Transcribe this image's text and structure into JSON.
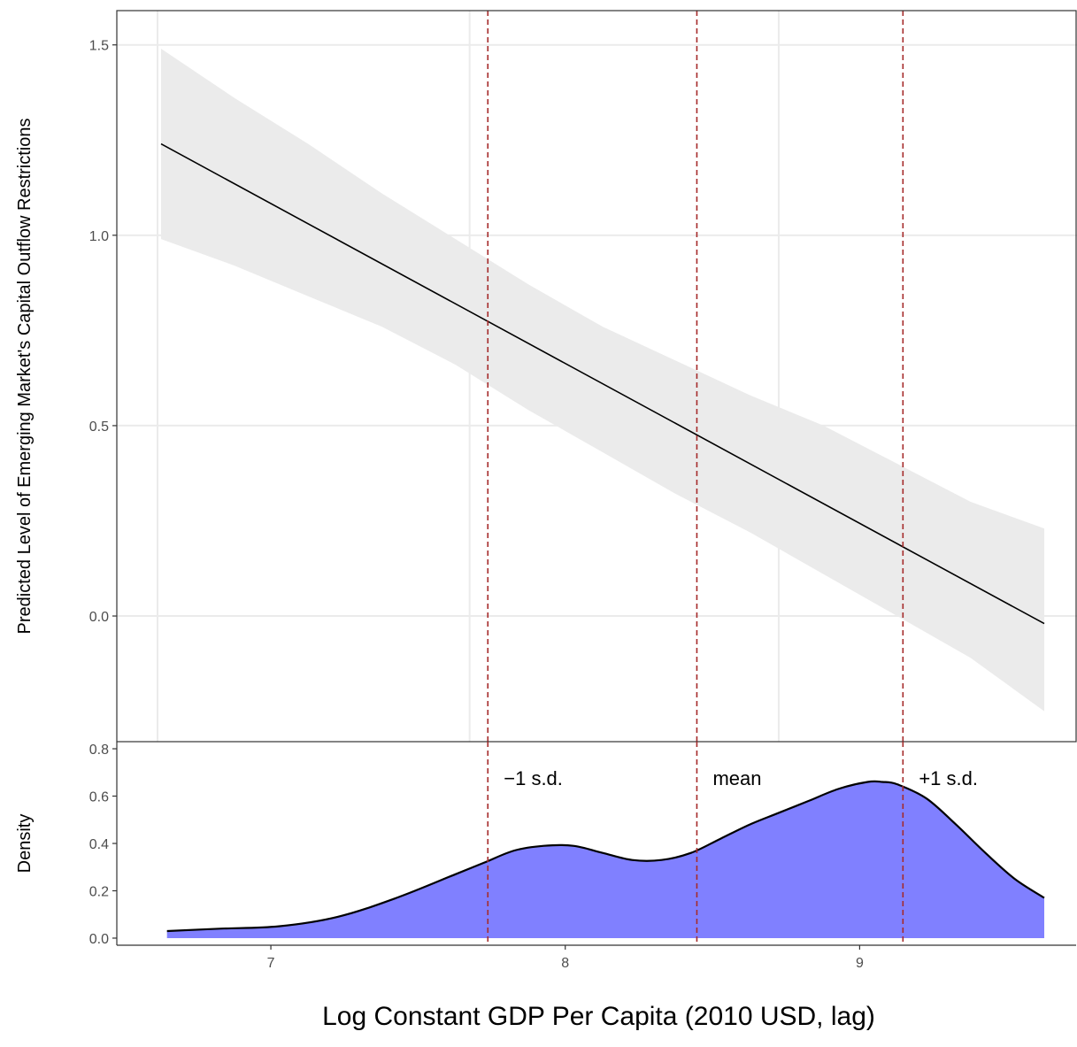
{
  "chart_data": [
    {
      "type": "line",
      "panel": "predicted",
      "ylabel": "Predicted Level of Emerging Market's Capital Outflow Restrictions",
      "xlim": [
        6.6,
        9.6
      ],
      "ylim": [
        -0.33,
        1.59
      ],
      "yticks": [
        0.0,
        0.5,
        1.0,
        1.5
      ],
      "ytick_labels": [
        "0.0",
        "0.5",
        "1.0",
        "1.5"
      ],
      "x_major_gridlines": [
        6.6,
        7.66,
        8.71
      ],
      "grid": true,
      "series": [
        {
          "kind": "line",
          "x": [
            6.6,
            9.6
          ],
          "y": [
            1.24,
            -0.02
          ]
        },
        {
          "kind": "ribbon",
          "x": [
            6.6,
            6.85,
            7.1,
            7.35,
            7.6,
            7.85,
            8.1,
            8.35,
            8.6,
            8.85,
            9.1,
            9.35,
            9.6
          ],
          "lower": [
            0.99,
            0.92,
            0.84,
            0.76,
            0.66,
            0.54,
            0.43,
            0.32,
            0.22,
            0.11,
            0.0,
            -0.11,
            -0.25
          ],
          "upper": [
            1.49,
            1.36,
            1.24,
            1.11,
            0.99,
            0.87,
            0.76,
            0.67,
            0.58,
            0.5,
            0.4,
            0.3,
            0.23
          ]
        }
      ],
      "reference_lines": [
        {
          "x": 7.71,
          "label": "−1 s.d."
        },
        {
          "x": 8.42,
          "label": "mean"
        },
        {
          "x": 9.12,
          "label": "+1 s.d."
        }
      ],
      "colors": {
        "line": "#000000",
        "ribbon": "#ebebeb",
        "reference": "#a52a2a",
        "grid": "#ebebeb"
      }
    },
    {
      "type": "area",
      "panel": "density",
      "ylabel": "Density",
      "xlabel": "Log Constant GDP Per Capita (2010 USD, lag)",
      "xlim": [
        6.6,
        9.6
      ],
      "ylim": [
        -0.03,
        0.83
      ],
      "xticks": [
        7,
        8,
        9
      ],
      "xtick_labels": [
        "7",
        "8",
        "9"
      ],
      "yticks": [
        0.0,
        0.2,
        0.4,
        0.6,
        0.8
      ],
      "ytick_labels": [
        "0.0",
        "0.2",
        "0.4",
        "0.6",
        "0.8"
      ],
      "series": [
        {
          "x": [
            6.62,
            6.8,
            7.0,
            7.2,
            7.4,
            7.6,
            7.7,
            7.8,
            7.9,
            8.0,
            8.1,
            8.2,
            8.3,
            8.4,
            8.5,
            8.6,
            8.7,
            8.8,
            8.9,
            9.0,
            9.05,
            9.1,
            9.2,
            9.3,
            9.4,
            9.5,
            9.6
          ],
          "y": [
            0.03,
            0.04,
            0.05,
            0.09,
            0.17,
            0.27,
            0.32,
            0.37,
            0.39,
            0.39,
            0.36,
            0.33,
            0.33,
            0.36,
            0.42,
            0.48,
            0.53,
            0.58,
            0.63,
            0.66,
            0.66,
            0.65,
            0.59,
            0.48,
            0.36,
            0.25,
            0.17
          ]
        }
      ],
      "reference_lines": [
        {
          "x": 7.71,
          "label": "−1 s.d."
        },
        {
          "x": 8.42,
          "label": "mean"
        },
        {
          "x": 9.12,
          "label": "+1 s.d."
        }
      ],
      "colors": {
        "fill": "#8080ff",
        "outline": "#000000",
        "reference": "#a52a2a"
      }
    }
  ]
}
